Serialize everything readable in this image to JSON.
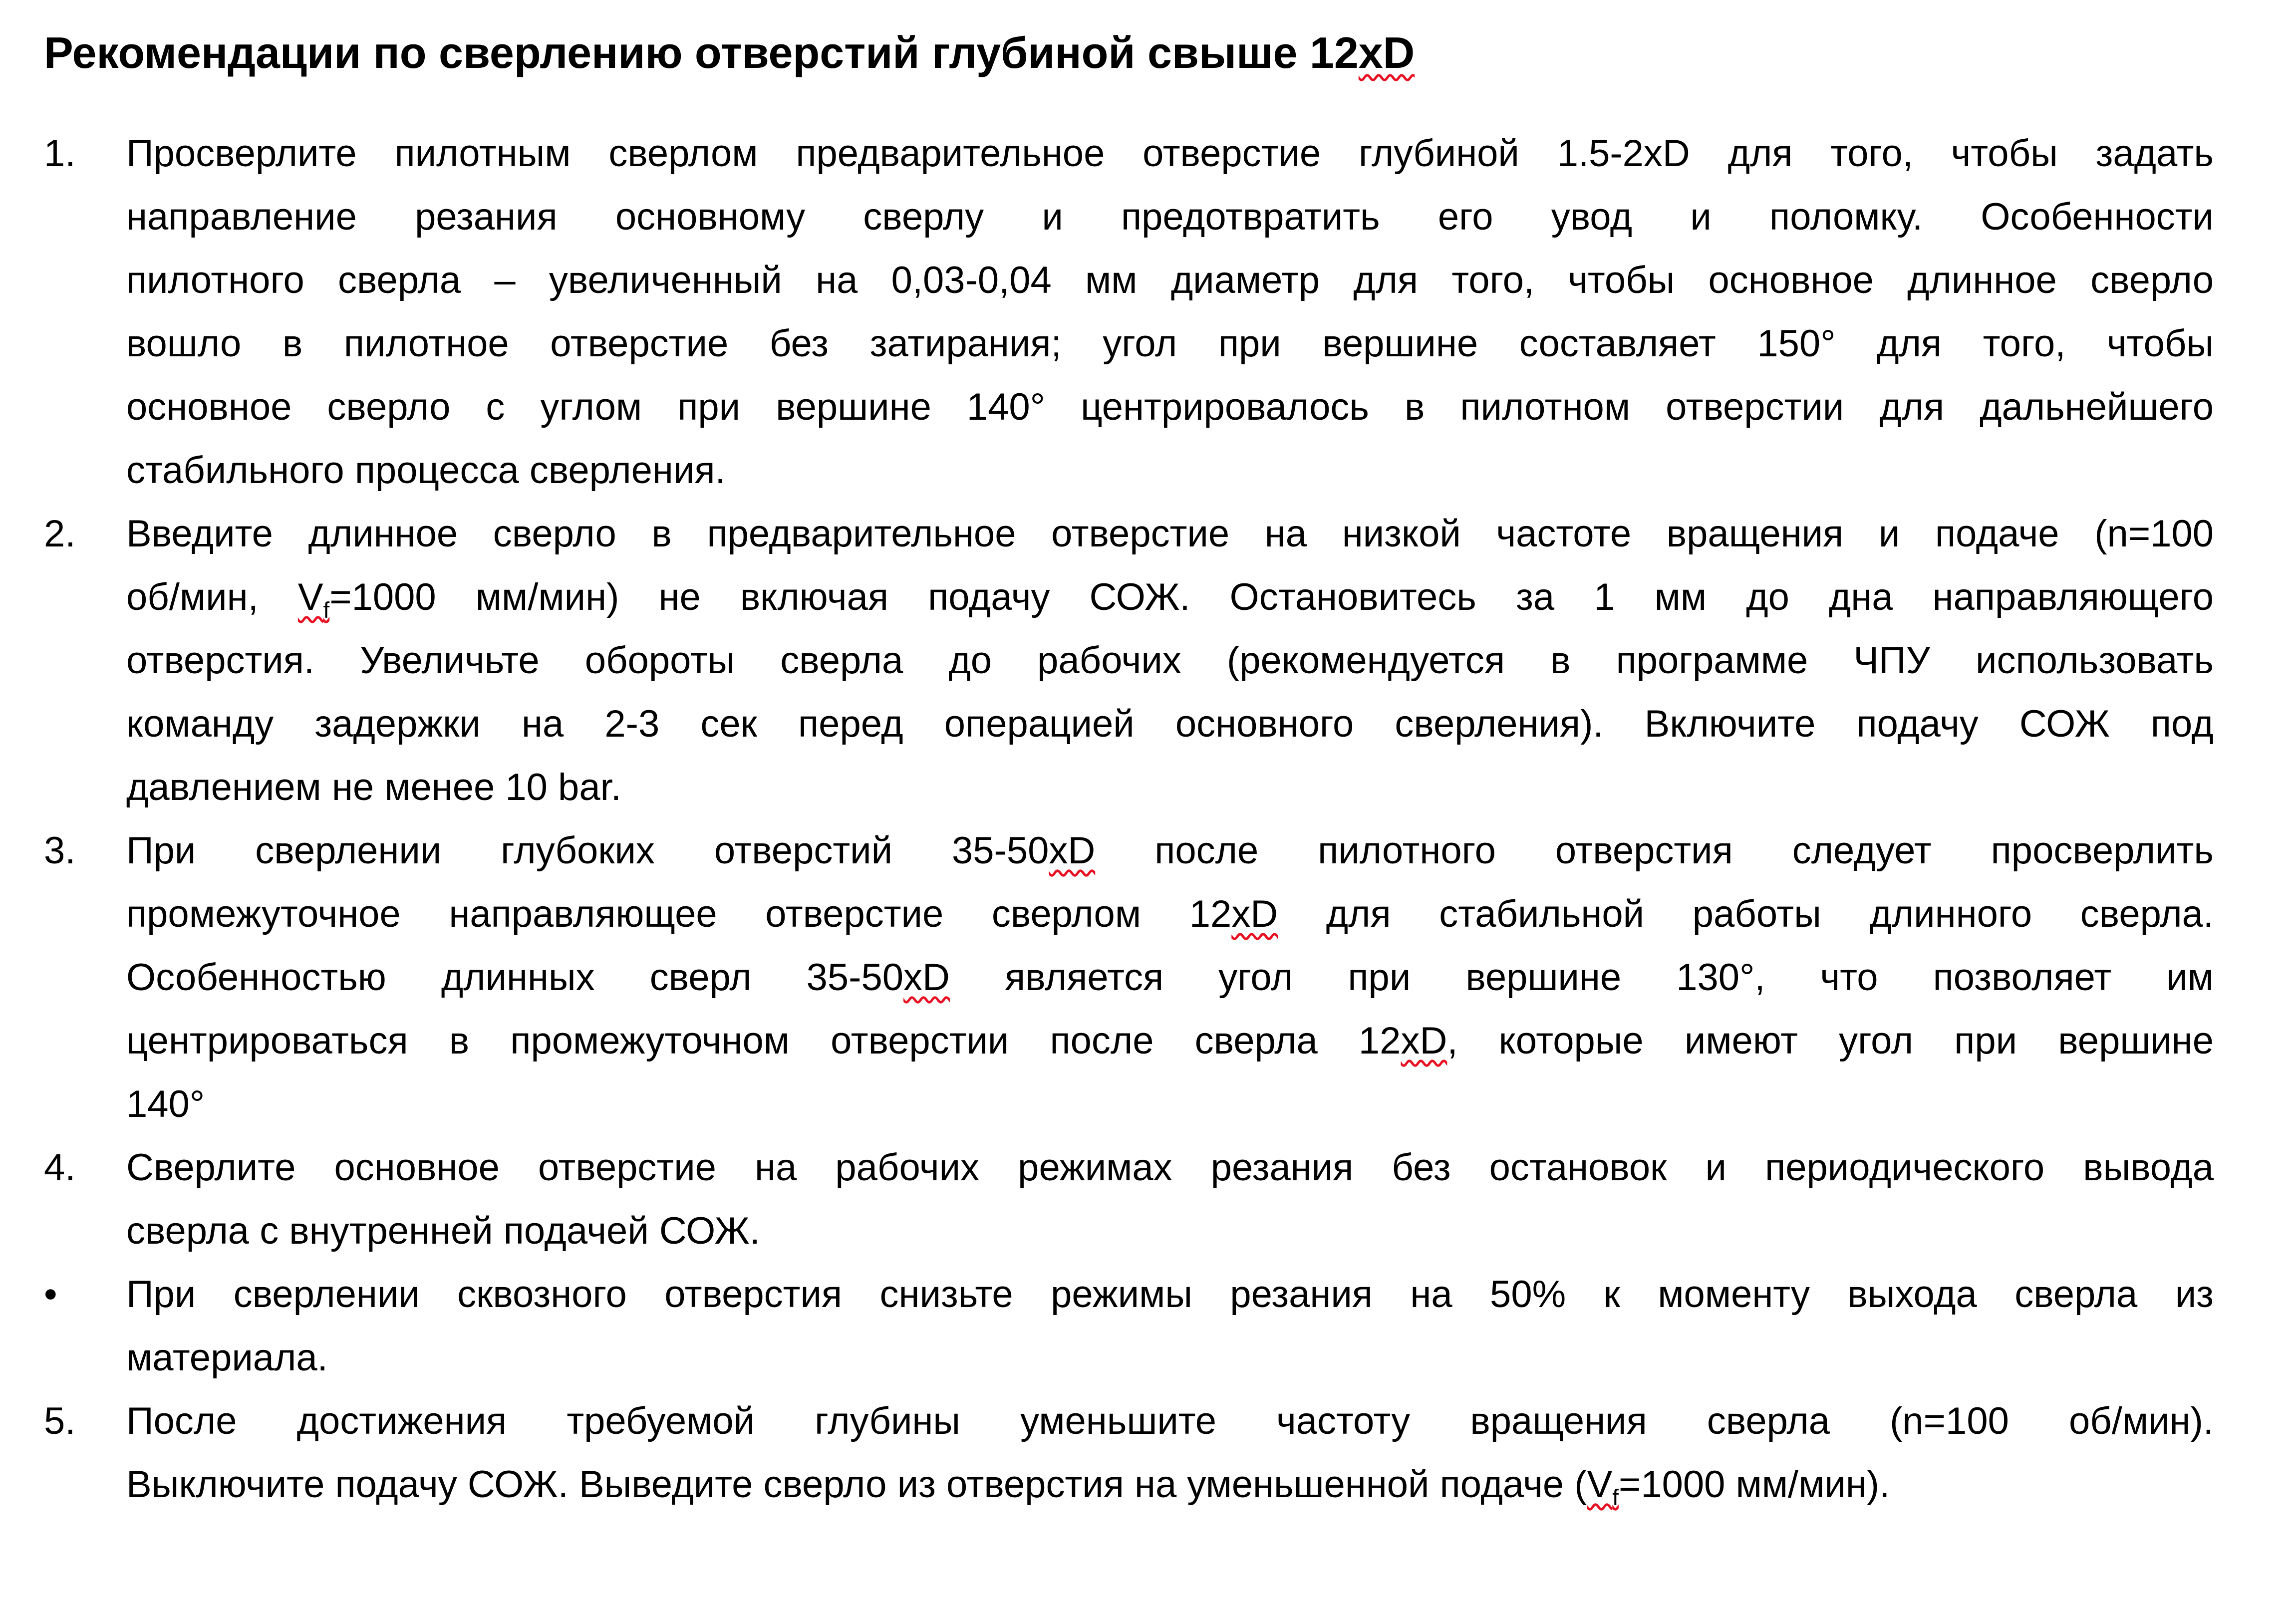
{
  "document": {
    "background_color": "#ffffff",
    "text_color": "#000000",
    "spellcheck_underline_color": "#e81123",
    "title": {
      "segments": [
        {
          "text": "Рекомендации по сверлению отверстий глубиной свыше 12"
        },
        {
          "text": "xD",
          "wavy": true
        }
      ]
    },
    "items": [
      {
        "marker": "1.",
        "type": "numbered",
        "lines": [
          {
            "segments": [
              {
                "text": "Просверлите пилотным сверлом предварительное отверстие глубиной 1.5-2xD для того, чтобы задать"
              }
            ]
          },
          {
            "segments": [
              {
                "text": "направление резания основному сверлу и предотвратить его увод и поломку. Особенности"
              }
            ]
          },
          {
            "segments": [
              {
                "text": "пилотного сверла – увеличенный на 0,03-0,04 мм диаметр для того, чтобы основное длинное сверло"
              }
            ]
          },
          {
            "segments": [
              {
                "text": "вошло в пилотное отверстие без затирания; угол при вершине составляет 150° для того, чтобы"
              }
            ]
          },
          {
            "segments": [
              {
                "text": "основное сверло с углом при вершине 140° центрировалось в пилотном отверстии для дальнейшего"
              }
            ]
          },
          {
            "segments": [
              {
                "text": "стабильного процесса сверления."
              }
            ]
          }
        ]
      },
      {
        "marker": "2.",
        "type": "numbered",
        "lines": [
          {
            "segments": [
              {
                "text": "Введите длинное сверло в предварительное отверстие на низкой частоте вращения и подаче (n=100"
              }
            ]
          },
          {
            "segments": [
              {
                "text": "об/мин, "
              },
              {
                "text": "V",
                "sub_text": "f",
                "wavy": true
              },
              {
                "text": "=1000 мм/мин) не включая подачу СОЖ. Остановитесь за 1 мм до дна направляющего"
              }
            ]
          },
          {
            "segments": [
              {
                "text": "отверстия. Увеличьте обороты сверла до рабочих (рекомендуется в программе ЧПУ использовать"
              }
            ]
          },
          {
            "segments": [
              {
                "text": "команду задержки на 2-3 сек перед операцией основного сверления). Включите подачу СОЖ под"
              }
            ]
          },
          {
            "segments": [
              {
                "text": "давлением не менее 10 bar."
              }
            ]
          }
        ]
      },
      {
        "marker": "3.",
        "type": "numbered",
        "lines": [
          {
            "segments": [
              {
                "text": "При сверлении глубоких отверстий 35-50"
              },
              {
                "text": "xD",
                "wavy": true
              },
              {
                "text": " после пилотного отверстия следует просверлить"
              }
            ]
          },
          {
            "segments": [
              {
                "text": "промежуточное направляющее отверстие сверлом 12"
              },
              {
                "text": "xD",
                "wavy": true
              },
              {
                "text": " для стабильной работы длинного сверла."
              }
            ]
          },
          {
            "segments": [
              {
                "text": "Особенностью длинных сверл 35-50"
              },
              {
                "text": "xD",
                "wavy": true
              },
              {
                "text": " является угол при вершине 130°, что позволяет им"
              }
            ]
          },
          {
            "segments": [
              {
                "text": "центрироваться в промежуточном отверстии после сверла 12"
              },
              {
                "text": "xD",
                "wavy": true
              },
              {
                "text": ", которые имеют угол при вершине"
              }
            ]
          },
          {
            "segments": [
              {
                "text": "140°"
              }
            ]
          }
        ]
      },
      {
        "marker": "4.",
        "type": "numbered",
        "lines": [
          {
            "segments": [
              {
                "text": "Сверлите основное отверстие на рабочих режимах резания без остановок и периодического вывода"
              }
            ]
          },
          {
            "segments": [
              {
                "text": "сверла с внутренней подачей СОЖ."
              }
            ]
          }
        ]
      },
      {
        "marker": "•",
        "type": "bullet",
        "lines": [
          {
            "segments": [
              {
                "text": "При сверлении сквозного отверстия снизьте режимы резания на 50% к моменту выхода сверла из"
              }
            ]
          },
          {
            "segments": [
              {
                "text": "материала."
              }
            ]
          }
        ]
      },
      {
        "marker": "5.",
        "type": "numbered",
        "lines": [
          {
            "segments": [
              {
                "text": "После достижения требуемой глубины уменьшите частоту вращения сверла (n=100 об/мин)."
              }
            ]
          },
          {
            "segments": [
              {
                "text": "Выключите подачу СОЖ. Выведите сверло из отверстия на уменьшенной подаче ("
              },
              {
                "text": "V",
                "sub_text": "f",
                "wavy": true
              },
              {
                "text": "=1000 мм/мин)."
              }
            ]
          }
        ]
      }
    ]
  }
}
